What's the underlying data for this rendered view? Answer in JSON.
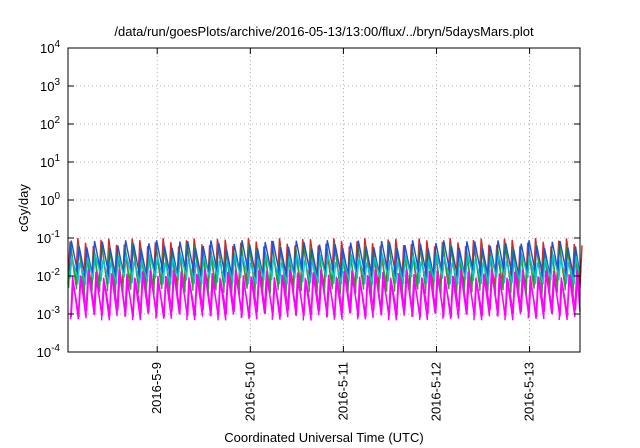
{
  "chart_data": {
    "type": "line",
    "title": "/data/run/goesPlots/archive/2016-05-13/13:00/flux/../bryn/5daysMars.plot",
    "xlabel": "Coordinated Universal Time (UTC)",
    "ylabel": "cGy/day",
    "yscale": "log",
    "ylim": [
      0.0001,
      10000
    ],
    "xlim": [
      "2016-05-08T01:00",
      "2016-05-13T13:00"
    ],
    "grid": true,
    "y_ticks": [
      {
        "base": "10",
        "exp": "-4"
      },
      {
        "base": "10",
        "exp": "-3"
      },
      {
        "base": "10",
        "exp": "-2"
      },
      {
        "base": "10",
        "exp": "-1"
      },
      {
        "base": "10",
        "exp": "0"
      },
      {
        "base": "10",
        "exp": "1"
      },
      {
        "base": "10",
        "exp": "2"
      },
      {
        "base": "10",
        "exp": "3"
      },
      {
        "base": "10",
        "exp": "4"
      }
    ],
    "x_ticks": [
      "2016-5-9",
      "2016-5-10",
      "2016-5-11",
      "2016-5-12",
      "2016-5-13"
    ],
    "x_tick_dates": [
      "2016-05-09T00:00",
      "2016-05-10T00:00",
      "2016-05-11T00:00",
      "2016-05-12T00:00",
      "2016-05-13T00:00"
    ],
    "sawtooth_period_hours": 2,
    "series": [
      {
        "color": "#d62728",
        "peak": 0.08,
        "trough": 0.006
      },
      {
        "color": "#2ca02c",
        "peak": 0.06,
        "trough": 0.004
      },
      {
        "color": "#1f4fd6",
        "peak": 0.07,
        "trough": 0.012
      },
      {
        "color": "#00c8c8",
        "peak": 0.03,
        "trough": 0.008
      },
      {
        "color": "#ff00ff",
        "peak": 0.012,
        "trough": 0.0009
      },
      {
        "color": "#ff00ff",
        "peak": 0.009,
        "trough": 0.0011
      }
    ]
  }
}
